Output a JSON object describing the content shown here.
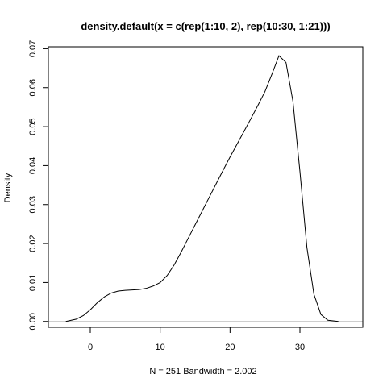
{
  "chart_data": {
    "type": "line",
    "title": "density.default(x = c(rep(1:10, 2), rep(10:30, 1:21)))",
    "xlabel": "N = 251   Bandwidth = 2.002",
    "ylabel": "Density",
    "xlim": [
      -6.0,
      39.0
    ],
    "ylim": [
      -0.0015,
      0.0705
    ],
    "x_ticks": [
      0,
      10,
      20,
      30
    ],
    "x_tick_labels": [
      "0",
      "10",
      "20",
      "30"
    ],
    "y_ticks": [
      0.0,
      0.01,
      0.02,
      0.03,
      0.04,
      0.05,
      0.06,
      0.07
    ],
    "y_tick_labels": [
      "0.00",
      "0.01",
      "0.02",
      "0.03",
      "0.04",
      "0.05",
      "0.06",
      "0.07"
    ],
    "zero_line": true,
    "grid": false,
    "series": [
      {
        "x": [
          -3.5,
          -2,
          -1,
          0,
          1,
          2,
          3,
          4,
          5,
          6,
          7,
          8,
          9,
          10,
          11,
          12,
          13,
          14,
          15,
          16,
          17,
          18,
          19,
          20,
          21,
          22,
          23,
          24,
          25,
          26,
          27,
          28,
          29,
          30,
          31,
          32,
          33,
          34,
          35.5
        ],
        "y": [
          0.0,
          0.0006,
          0.0015,
          0.003,
          0.0048,
          0.0063,
          0.0073,
          0.0078,
          0.008,
          0.0081,
          0.0082,
          0.0085,
          0.0091,
          0.01,
          0.0118,
          0.0145,
          0.0178,
          0.0213,
          0.0248,
          0.0283,
          0.0318,
          0.0353,
          0.0388,
          0.0422,
          0.0455,
          0.0488,
          0.0521,
          0.0555,
          0.059,
          0.0635,
          0.0682,
          0.0665,
          0.0565,
          0.0385,
          0.019,
          0.007,
          0.0018,
          0.0003,
          0.0
        ],
        "color": "#000000"
      }
    ],
    "colors": {
      "line": "#000000",
      "zero_line": "#bebebe",
      "frame": "#000000"
    }
  }
}
